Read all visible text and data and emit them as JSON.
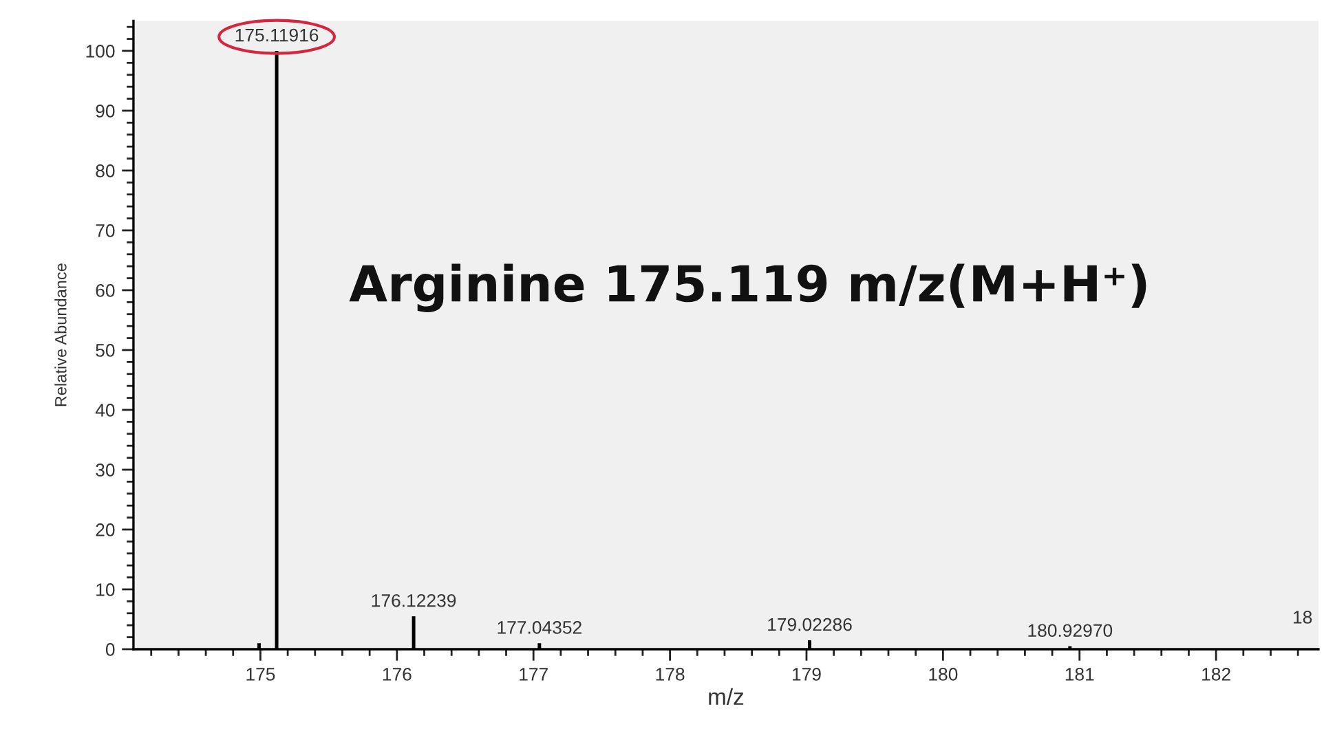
{
  "chart_data": {
    "type": "bar",
    "title": "Arginine 175.119 m/z(M+H⁺)",
    "xlabel": "m/z",
    "ylabel": "Relative Abundance",
    "color": "#000000",
    "x": [
      174.99,
      175.11916,
      176.12239,
      177.04352,
      179.02286,
      180.9297
    ],
    "values": [
      1,
      100,
      5.5,
      1,
      1.5,
      0.5
    ],
    "xlim": [
      174.07,
      182.75
    ],
    "ylim": [
      0,
      105
    ],
    "xticks": [
      {
        "value": 174.2,
        "label": null
      },
      {
        "value": 174.4,
        "label": null
      },
      {
        "value": 174.6,
        "label": null
      },
      {
        "value": 174.8,
        "label": null
      },
      175,
      {
        "value": 175.2,
        "label": null
      },
      {
        "value": 175.4,
        "label": null
      },
      {
        "value": 175.6,
        "label": null
      },
      {
        "value": 175.8,
        "label": null
      },
      176,
      {
        "value": 176.2,
        "label": null
      },
      {
        "value": 176.4,
        "label": null
      },
      {
        "value": 176.6,
        "label": null
      },
      {
        "value": 176.8,
        "label": null
      },
      177,
      {
        "value": 177.2,
        "label": null
      },
      {
        "value": 177.4,
        "label": null
      },
      {
        "value": 177.6,
        "label": null
      },
      {
        "value": 177.8,
        "label": null
      },
      178,
      {
        "value": 178.2,
        "label": null
      },
      {
        "value": 178.4,
        "label": null
      },
      {
        "value": 178.6,
        "label": null
      },
      {
        "value": 178.8,
        "label": null
      },
      179,
      {
        "value": 179.2,
        "label": null
      },
      {
        "value": 179.4,
        "label": null
      },
      {
        "value": 179.6,
        "label": null
      },
      {
        "value": 179.8,
        "label": null
      },
      180,
      {
        "value": 180.2,
        "label": null
      },
      {
        "value": 180.4,
        "label": null
      },
      {
        "value": 180.6,
        "label": null
      },
      {
        "value": 180.8,
        "label": null
      },
      181,
      {
        "value": 181.2,
        "label": null
      },
      {
        "value": 181.4,
        "label": null
      },
      {
        "value": 181.6,
        "label": null
      },
      {
        "value": 181.8,
        "label": null
      },
      182,
      {
        "value": 182.2,
        "label": null
      },
      {
        "value": 182.4,
        "label": null
      },
      {
        "value": 182.6,
        "label": null
      }
    ],
    "yticks": [
      0,
      {
        "value": 2,
        "label": null
      },
      {
        "value": 4,
        "label": null
      },
      {
        "value": 6,
        "label": null
      },
      {
        "value": 8,
        "label": null
      },
      10,
      {
        "value": 12,
        "label": null
      },
      {
        "value": 14,
        "label": null
      },
      {
        "value": 16,
        "label": null
      },
      {
        "value": 18,
        "label": null
      },
      20,
      {
        "value": 22,
        "label": null
      },
      {
        "value": 24,
        "label": null
      },
      {
        "value": 26,
        "label": null
      },
      {
        "value": 28,
        "label": null
      },
      30,
      {
        "value": 32,
        "label": null
      },
      {
        "value": 34,
        "label": null
      },
      {
        "value": 36,
        "label": null
      },
      {
        "value": 38,
        "label": null
      },
      40,
      {
        "value": 42,
        "label": null
      },
      {
        "value": 44,
        "label": null
      },
      {
        "value": 46,
        "label": null
      },
      {
        "value": 48,
        "label": null
      },
      50,
      {
        "value": 52,
        "label": null
      },
      {
        "value": 54,
        "label": null
      },
      {
        "value": 56,
        "label": null
      },
      {
        "value": 58,
        "label": null
      },
      60,
      {
        "value": 62,
        "label": null
      },
      {
        "value": 64,
        "label": null
      },
      {
        "value": 66,
        "label": null
      },
      {
        "value": 68,
        "label": null
      },
      70,
      {
        "value": 72,
        "label": null
      },
      {
        "value": 74,
        "label": null
      },
      {
        "value": 76,
        "label": null
      },
      {
        "value": 78,
        "label": null
      },
      80,
      {
        "value": 82,
        "label": null
      },
      {
        "value": 84,
        "label": null
      },
      {
        "value": 86,
        "label": null
      },
      {
        "value": 88,
        "label": null
      },
      90,
      {
        "value": 92,
        "label": null
      },
      {
        "value": 94,
        "label": null
      },
      {
        "value": 96,
        "label": null
      },
      {
        "value": 98,
        "label": null
      },
      100,
      {
        "value": 102,
        "label": null
      },
      {
        "value": 104,
        "label": null
      }
    ],
    "annotations": [
      {
        "text": "175.11916",
        "x": 175.11916,
        "y": 100
      },
      {
        "text": "176.12239",
        "x": 176.12239,
        "y": 5.5
      },
      {
        "text": "177.04352",
        "x": 177.04352,
        "y": 1
      },
      {
        "text": "179.02286",
        "x": 179.02286,
        "y": 1.5
      },
      {
        "text": "180.92970",
        "x": 180.9297,
        "y": 0.5
      },
      "18"
    ]
  }
}
